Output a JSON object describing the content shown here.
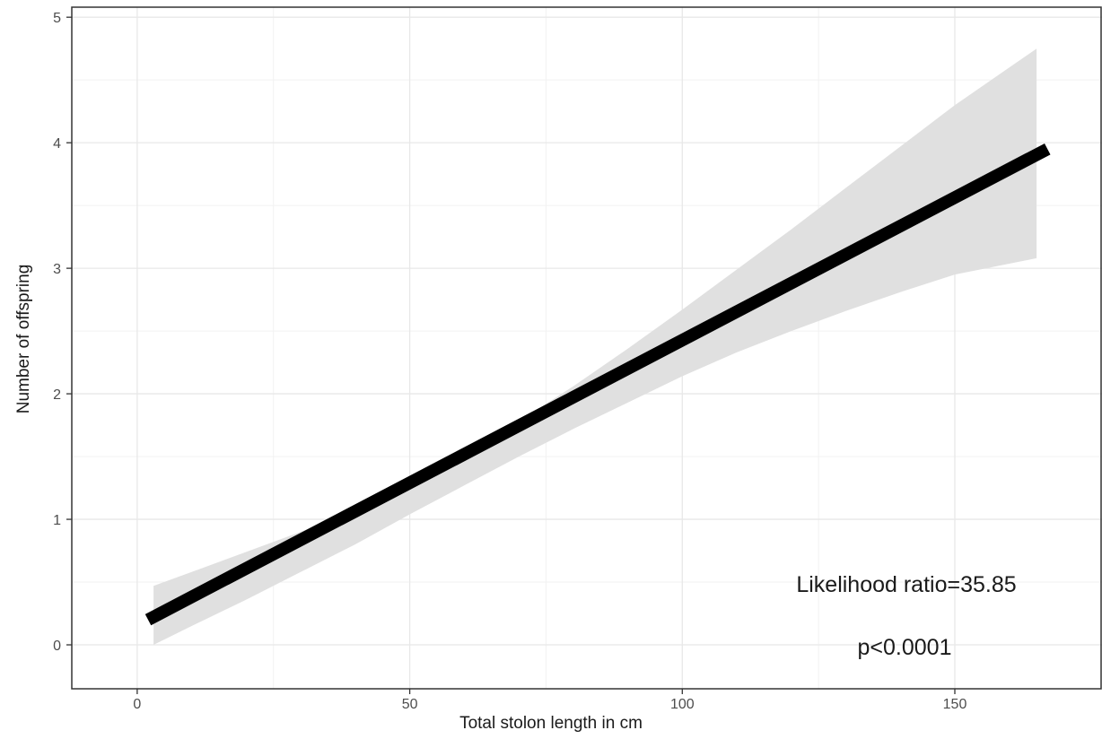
{
  "chart_data": {
    "type": "line",
    "xlabel": "Total stolon length in cm",
    "ylabel": "Number of offspring",
    "xlim": [
      -12,
      177
    ],
    "ylim": [
      -0.35,
      5.08
    ],
    "xticks": [
      0,
      50,
      100,
      150
    ],
    "yticks": [
      0,
      1,
      2,
      3,
      4,
      5
    ],
    "x_minor_grid": [
      25,
      75,
      125
    ],
    "y_minor_grid": [
      0.5,
      1.5,
      2.5,
      3.5,
      4.5
    ],
    "grid": true,
    "series": [
      {
        "x": [
          2,
          167
        ],
        "y": [
          0.2,
          3.95
        ],
        "color": "#000000"
      }
    ],
    "confidence_band": {
      "x": [
        3,
        10,
        20,
        30,
        40,
        50,
        60,
        70,
        80,
        90,
        100,
        110,
        120,
        130,
        140,
        150,
        165
      ],
      "upper": [
        0.47,
        0.58,
        0.74,
        0.9,
        1.08,
        1.28,
        1.52,
        1.78,
        2.06,
        2.36,
        2.67,
        2.99,
        3.31,
        3.64,
        3.97,
        4.3,
        4.75
      ],
      "lower": [
        0.0,
        0.15,
        0.36,
        0.58,
        0.8,
        1.04,
        1.27,
        1.5,
        1.72,
        1.93,
        2.14,
        2.33,
        2.5,
        2.66,
        2.81,
        2.95,
        3.08
      ],
      "color": "#e0e0e0"
    },
    "annotations": [
      "Likelihood ratio=35.85",
      "p<0.0001"
    ]
  }
}
